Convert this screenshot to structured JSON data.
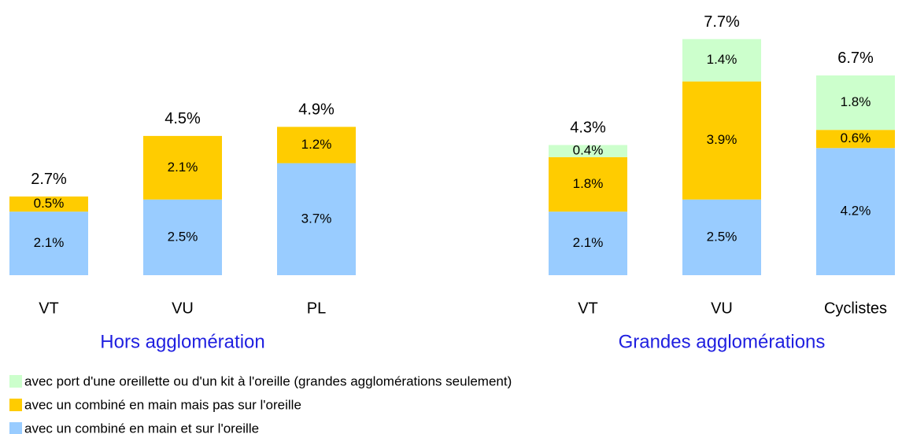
{
  "chart_data": {
    "type": "bar",
    "stacked": true,
    "groups": [
      {
        "name": "Hors agglomération",
        "categories": [
          "VT",
          "VU",
          "PL"
        ]
      },
      {
        "name": "Grandes agglomérations",
        "categories": [
          "VT",
          "VU",
          "Cyclistes"
        ]
      }
    ],
    "series": [
      {
        "name": "avec port d'une oreillette ou d'un kit à l'oreille (grandes agglomérations seulement)",
        "color": "#ccffcc",
        "values": [
          null,
          null,
          null,
          0.4,
          1.4,
          1.8
        ],
        "value_labels": [
          null,
          null,
          null,
          "0.4%",
          "1.4%",
          "1.8%"
        ]
      },
      {
        "name": "avec un combiné en main mais pas sur l'oreille",
        "color": "#ffcc00",
        "values": [
          0.5,
          2.1,
          1.2,
          1.8,
          3.9,
          0.6
        ],
        "value_labels": [
          "0.5%",
          "2.1%",
          "1.2%",
          "1.8%",
          "3.9%",
          "0.6%"
        ]
      },
      {
        "name": "avec un combiné en main et sur l'oreille",
        "color": "#99ccff",
        "values": [
          2.1,
          2.5,
          3.7,
          2.1,
          2.5,
          4.2
        ],
        "value_labels": [
          "2.1%",
          "2.5%",
          "3.7%",
          "2.1%",
          "2.5%",
          "4.2%"
        ]
      }
    ],
    "totals": [
      2.7,
      4.5,
      4.9,
      4.3,
      7.7,
      6.7
    ],
    "total_labels": [
      "2.7%",
      "4.5%",
      "4.9%",
      "4.3%",
      "7.7%",
      "6.7%"
    ]
  }
}
